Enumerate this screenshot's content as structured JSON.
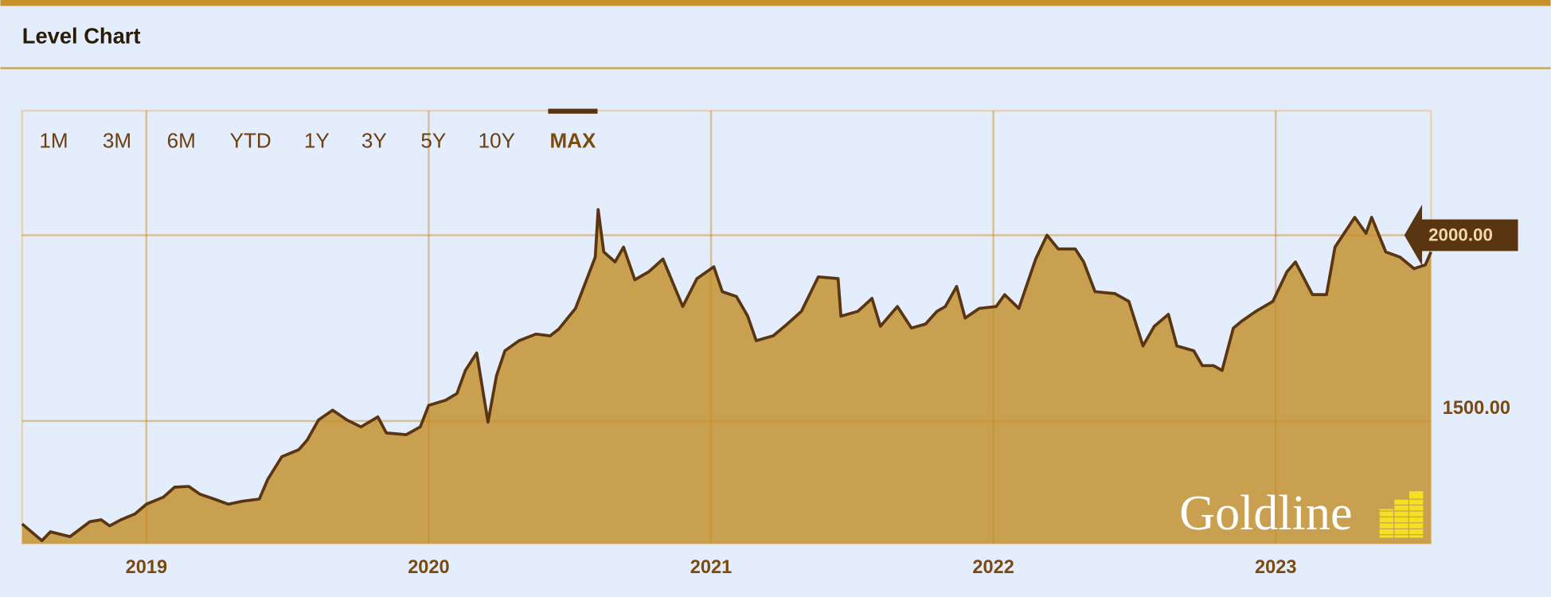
{
  "chart_data": {
    "type": "area",
    "title": "Level Chart",
    "range_buttons": [
      "1M",
      "3M",
      "6M",
      "YTD",
      "1Y",
      "3Y",
      "5Y",
      "10Y",
      "MAX"
    ],
    "selected_range": "MAX",
    "watermark": "Goldline",
    "x": [
      2018.56,
      2018.63,
      2018.66,
      2018.73,
      2018.8,
      2018.84,
      2018.87,
      2018.91,
      2018.96,
      2019.0,
      2019.06,
      2019.1,
      2019.15,
      2019.19,
      2019.24,
      2019.29,
      2019.34,
      2019.4,
      2019.43,
      2019.48,
      2019.54,
      2019.57,
      2019.61,
      2019.66,
      2019.71,
      2019.76,
      2019.82,
      2019.85,
      2019.92,
      2019.97,
      2020.0,
      2020.06,
      2020.1,
      2020.13,
      2020.17,
      2020.21,
      2020.24,
      2020.27,
      2020.32,
      2020.38,
      2020.43,
      2020.46,
      2020.52,
      2020.55,
      2020.59,
      2020.6,
      2020.62,
      2020.66,
      2020.69,
      2020.73,
      2020.78,
      2020.83,
      2020.87,
      2020.9,
      2020.95,
      2021.01,
      2021.04,
      2021.09,
      2021.13,
      2021.16,
      2021.22,
      2021.27,
      2021.32,
      2021.38,
      2021.45,
      2021.46,
      2021.52,
      2021.57,
      2021.6,
      2021.66,
      2021.71,
      2021.76,
      2021.8,
      2021.83,
      2021.87,
      2021.9,
      2021.95,
      2022.01,
      2022.04,
      2022.09,
      2022.15,
      2022.19,
      2022.23,
      2022.29,
      2022.32,
      2022.36,
      2022.43,
      2022.48,
      2022.53,
      2022.57,
      2022.62,
      2022.65,
      2022.71,
      2022.74,
      2022.78,
      2022.81,
      2022.85,
      2022.88,
      2022.93,
      2022.99,
      2023.04,
      2023.07,
      2023.13,
      2023.18,
      2023.21,
      2023.28,
      2023.32,
      2023.34,
      2023.39,
      2023.44,
      2023.49,
      2023.53,
      2023.55
    ],
    "values": [
      1223,
      1178,
      1202,
      1189,
      1229,
      1234,
      1218,
      1234,
      1250,
      1276,
      1295,
      1322,
      1324,
      1303,
      1290,
      1276,
      1284,
      1290,
      1343,
      1404,
      1423,
      1449,
      1503,
      1529,
      1503,
      1484,
      1511,
      1468,
      1463,
      1484,
      1542,
      1556,
      1574,
      1636,
      1683,
      1497,
      1622,
      1689,
      1716,
      1734,
      1729,
      1747,
      1803,
      1862,
      1941,
      2069,
      1955,
      1928,
      1968,
      1880,
      1902,
      1936,
      1862,
      1808,
      1883,
      1915,
      1848,
      1835,
      1782,
      1716,
      1729,
      1761,
      1795,
      1888,
      1883,
      1782,
      1795,
      1830,
      1755,
      1808,
      1750,
      1761,
      1795,
      1808,
      1862,
      1777,
      1803,
      1808,
      1840,
      1803,
      1936,
      2000,
      1963,
      1963,
      1928,
      1848,
      1843,
      1822,
      1702,
      1755,
      1787,
      1702,
      1689,
      1649,
      1649,
      1636,
      1750,
      1769,
      1795,
      1822,
      1902,
      1928,
      1840,
      1840,
      1968,
      2048,
      2005,
      2048,
      1955,
      1941,
      1910,
      1920,
      1955
    ],
    "color": "#c9a050",
    "line_color": "#5a3512",
    "xlim": [
      2018.56,
      2023.55
    ],
    "xticks": [
      2019,
      2020,
      2021,
      2022,
      2023
    ],
    "ylim": [
      1170,
      2335
    ],
    "yticks": [
      {
        "value": 1500,
        "label": "1500.00"
      },
      {
        "value": 2000,
        "label": "2000.00"
      }
    ],
    "highlight_tick": 1,
    "grid": true
  }
}
